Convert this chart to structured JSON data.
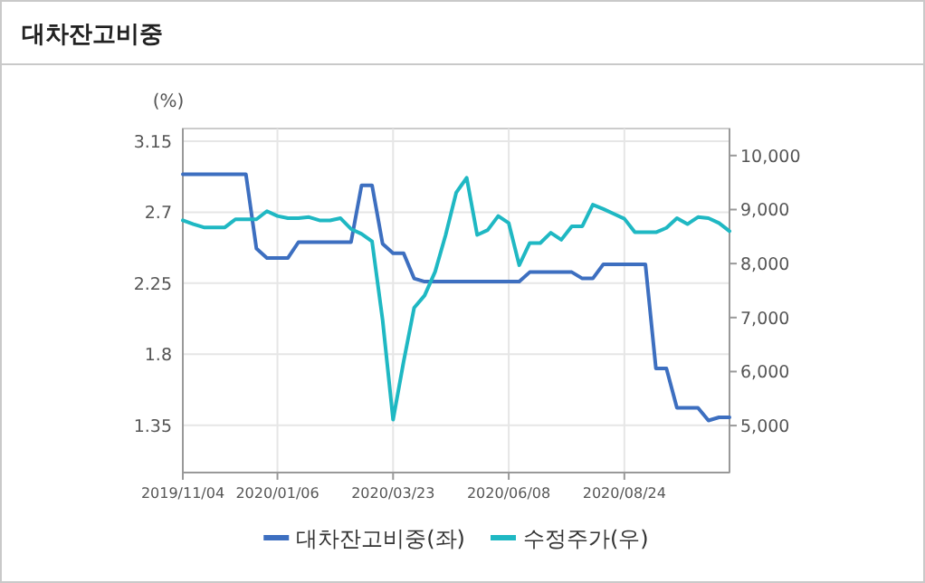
{
  "chart_data": {
    "type": "line",
    "title": "대차잔고비중",
    "ylabel": "(%)",
    "x": [
      "2019-11-04",
      "2019-11-11",
      "2019-11-18",
      "2019-11-25",
      "2019-12-02",
      "2019-12-09",
      "2019-12-16",
      "2019-12-23",
      "2019-12-30",
      "2020-01-06",
      "2020-01-13",
      "2020-01-20",
      "2020-01-27",
      "2020-02-03",
      "2020-02-10",
      "2020-02-17",
      "2020-02-24",
      "2020-03-02",
      "2020-03-09",
      "2020-03-16",
      "2020-03-23",
      "2020-03-30",
      "2020-04-06",
      "2020-04-13",
      "2020-04-20",
      "2020-04-27",
      "2020-05-04",
      "2020-05-11",
      "2020-05-18",
      "2020-05-25",
      "2020-06-01",
      "2020-06-08",
      "2020-06-15",
      "2020-06-22",
      "2020-06-29",
      "2020-07-06",
      "2020-07-13",
      "2020-07-20",
      "2020-07-27",
      "2020-08-03",
      "2020-08-10",
      "2020-08-17",
      "2020-08-24",
      "2020-08-31",
      "2020-09-07",
      "2020-09-14",
      "2020-09-21",
      "2020-09-28",
      "2020-10-05",
      "2020-10-12",
      "2020-10-19",
      "2020-10-26",
      "2020-11-02"
    ],
    "series": [
      {
        "name": "대차잔고비중(좌)",
        "color": "#3d6fc0",
        "values": [
          2.94,
          2.94,
          2.94,
          2.94,
          2.94,
          2.94,
          2.94,
          2.47,
          2.41,
          2.41,
          2.41,
          2.51,
          2.51,
          2.51,
          2.51,
          2.51,
          2.51,
          2.87,
          2.87,
          2.5,
          2.44,
          2.44,
          2.28,
          2.26,
          2.26,
          2.26,
          2.26,
          2.26,
          2.26,
          2.26,
          2.26,
          2.26,
          2.26,
          2.32,
          2.32,
          2.32,
          2.32,
          2.32,
          2.28,
          2.28,
          2.37,
          2.37,
          2.37,
          2.37,
          2.37,
          1.71,
          1.71,
          1.46,
          1.46,
          1.46,
          1.38,
          1.4,
          1.4
        ]
      },
      {
        "name": "수정주가(우)",
        "color": "#1fb8c3",
        "axis": "y2",
        "values": [
          8800,
          8730,
          8670,
          8670,
          8670,
          8820,
          8820,
          8820,
          8970,
          8880,
          8840,
          8840,
          8860,
          8800,
          8800,
          8840,
          8640,
          8550,
          8410,
          6960,
          5110,
          6180,
          7180,
          7410,
          7850,
          8530,
          9310,
          9590,
          8530,
          8620,
          8880,
          8750,
          7970,
          8380,
          8380,
          8570,
          8440,
          8690,
          8690,
          9090,
          9010,
          8920,
          8830,
          8580,
          8580,
          8580,
          8660,
          8840,
          8730,
          8860,
          8840,
          8750,
          8600
        ]
      }
    ],
    "xlim": [
      "2019-11-04",
      "2020-11-02"
    ],
    "xticks": [
      {
        "value": "2019-11-04",
        "label": "2019/11/04"
      },
      {
        "value": "2020-01-06",
        "label": "2020/01/06"
      },
      {
        "value": "2020-03-23",
        "label": "2020/03/23"
      },
      {
        "value": "2020-06-08",
        "label": "2020/06/08"
      },
      {
        "value": "2020-08-24",
        "label": "2020/08/24"
      }
    ],
    "ylim": [
      1.05,
      3.23
    ],
    "yticks": [
      1.35,
      1.8,
      2.25,
      2.7,
      3.15
    ],
    "y2lim": [
      4130,
      10500
    ],
    "y2ticks": [
      {
        "value": 5000,
        "label": "5,000"
      },
      {
        "value": 6000,
        "label": "6,000"
      },
      {
        "value": 7000,
        "label": "7,000"
      },
      {
        "value": 8000,
        "label": "8,000"
      },
      {
        "value": 9000,
        "label": "9,000"
      },
      {
        "value": 10000,
        "label": "10,000"
      }
    ],
    "grid": true,
    "legend": "bottom"
  }
}
